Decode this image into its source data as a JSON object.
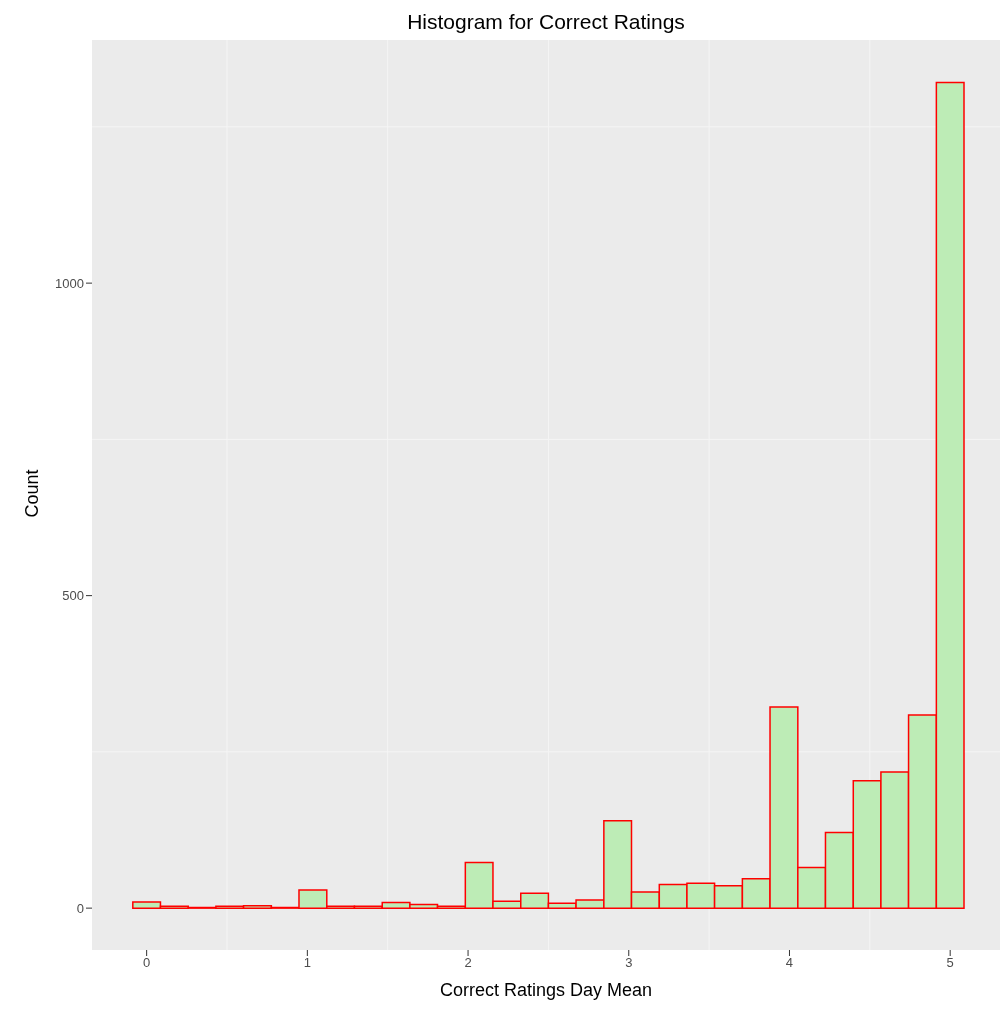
{
  "chart_data": {
    "type": "histogram",
    "title": "Histogram for Correct Ratings",
    "xlabel": "Correct Ratings Day Mean",
    "ylabel": "Count",
    "bins": [
      -0.086,
      0.086,
      0.259,
      0.431,
      0.603,
      0.776,
      0.948,
      1.121,
      1.293,
      1.466,
      1.638,
      1.81,
      1.983,
      2.155,
      2.328,
      2.5,
      2.672,
      2.845,
      3.017,
      3.19,
      3.362,
      3.534,
      3.707,
      3.879,
      4.052,
      4.224,
      4.397,
      4.569,
      4.741,
      4.914,
      5.086
    ],
    "values": [
      10,
      3,
      1,
      3,
      4,
      1,
      29,
      3,
      3,
      9,
      6,
      3,
      73,
      11,
      24,
      8,
      13,
      140,
      26,
      38,
      40,
      36,
      47,
      322,
      65,
      121,
      204,
      218,
      309,
      1321
    ],
    "color": "#bdecb6",
    "xlim": [
      -0.34,
      5.31
    ],
    "xticks": [
      0,
      1,
      2,
      3,
      4,
      5
    ],
    "ylim": [
      -67,
      1389
    ],
    "yticks": [
      0,
      500,
      1000
    ],
    "grid": true
  }
}
